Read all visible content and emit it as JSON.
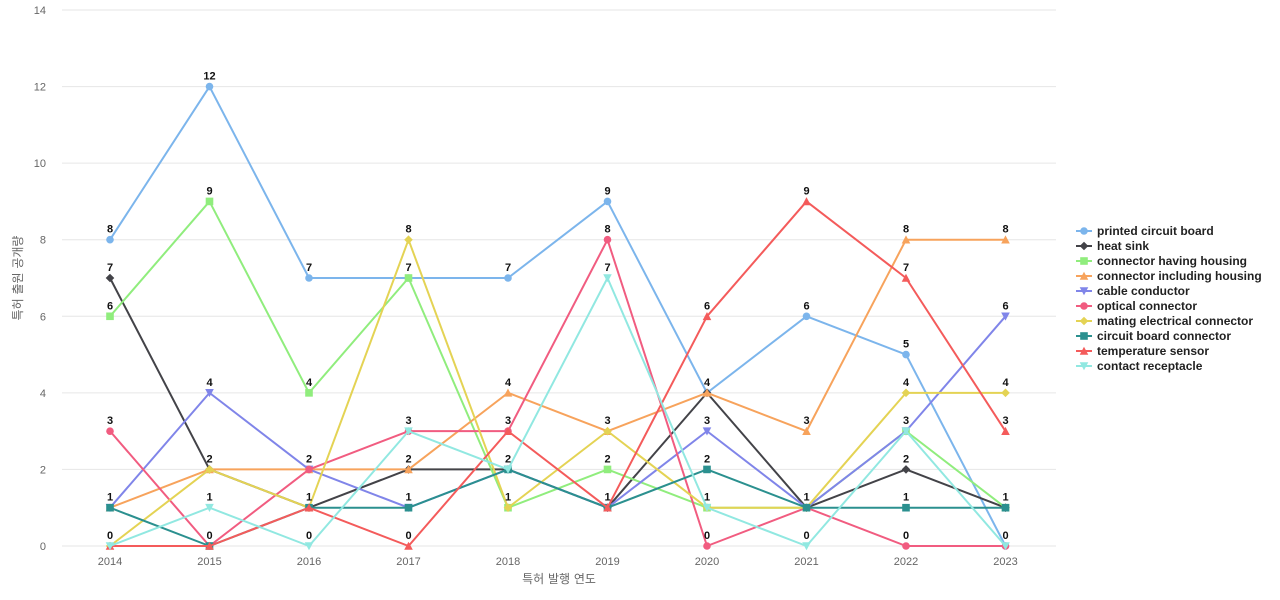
{
  "chart_data": {
    "type": "line",
    "xlabel": "특허 발행 연도",
    "ylabel": "특허 출원 공개량",
    "ylim": [
      0,
      14
    ],
    "yticks": [
      0,
      2,
      4,
      6,
      8,
      10,
      12,
      14
    ],
    "grid": true,
    "legend_position": "right",
    "categories": [
      "2014",
      "2015",
      "2016",
      "2017",
      "2018",
      "2019",
      "2020",
      "2021",
      "2022",
      "2023"
    ],
    "series": [
      {
        "name": "printed circuit board",
        "color": "#7cb5ec",
        "marker": "circle",
        "values": [
          8,
          12,
          7,
          7,
          7,
          9,
          4,
          6,
          5,
          0
        ]
      },
      {
        "name": "heat sink",
        "color": "#434348",
        "marker": "diamond",
        "values": [
          7,
          2,
          1,
          2,
          2,
          1,
          4,
          1,
          2,
          1
        ]
      },
      {
        "name": "connector having housing",
        "color": "#90ed7d",
        "marker": "square",
        "values": [
          6,
          9,
          4,
          7,
          1,
          2,
          1,
          1,
          3,
          1
        ]
      },
      {
        "name": "connector including housing",
        "color": "#f7a35c",
        "marker": "triangle",
        "values": [
          1,
          2,
          2,
          2,
          4,
          3,
          4,
          3,
          8,
          8
        ]
      },
      {
        "name": "cable conductor",
        "color": "#8085e9",
        "marker": "triangle-down",
        "values": [
          1,
          4,
          2,
          1,
          2,
          1,
          3,
          1,
          3,
          6
        ]
      },
      {
        "name": "optical connector",
        "color": "#f15c80",
        "marker": "circle",
        "values": [
          3,
          0,
          2,
          3,
          3,
          8,
          0,
          1,
          0,
          0
        ]
      },
      {
        "name": "mating electrical connector",
        "color": "#e4d354",
        "marker": "diamond",
        "values": [
          0,
          2,
          1,
          8,
          1,
          3,
          1,
          1,
          4,
          4
        ]
      },
      {
        "name": "circuit board connector",
        "color": "#2b908f",
        "marker": "square",
        "values": [
          1,
          0,
          1,
          1,
          2,
          1,
          2,
          1,
          1,
          1
        ]
      },
      {
        "name": "temperature sensor",
        "color": "#f45b5b",
        "marker": "triangle",
        "values": [
          0,
          0,
          1,
          0,
          3,
          1,
          6,
          9,
          7,
          3
        ]
      },
      {
        "name": "contact receptacle",
        "color": "#91e8e1",
        "marker": "triangle-down",
        "values": [
          0,
          1,
          0,
          3,
          2,
          7,
          1,
          0,
          3,
          0
        ]
      }
    ],
    "data_labels": [
      {
        "category": "2014",
        "series": "printed circuit board",
        "text": "8"
      },
      {
        "category": "2014",
        "series": "heat sink",
        "text": "7"
      },
      {
        "category": "2014",
        "series": "connector having housing",
        "text": "6"
      },
      {
        "category": "2014",
        "series": "optical connector",
        "text": "3"
      },
      {
        "category": "2014",
        "series": "connector including housing",
        "text": "1"
      },
      {
        "category": "2014",
        "series": "mating electrical connector",
        "text": "0"
      },
      {
        "category": "2015",
        "series": "printed circuit board",
        "text": "12"
      },
      {
        "category": "2015",
        "series": "connector having housing",
        "text": "9"
      },
      {
        "category": "2015",
        "series": "cable conductor",
        "text": "4"
      },
      {
        "category": "2015",
        "series": "connector including housing",
        "text": "2"
      },
      {
        "category": "2015",
        "series": "contact receptacle",
        "text": "1"
      },
      {
        "category": "2015",
        "series": "optical connector",
        "text": "0"
      },
      {
        "category": "2016",
        "series": "printed circuit board",
        "text": "7"
      },
      {
        "category": "2016",
        "series": "connector having housing",
        "text": "4"
      },
      {
        "category": "2016",
        "series": "optical connector",
        "text": "2"
      },
      {
        "category": "2016",
        "series": "heat sink",
        "text": "1"
      },
      {
        "category": "2016",
        "series": "contact receptacle",
        "text": "0"
      },
      {
        "category": "2017",
        "series": "mating electrical connector",
        "text": "8"
      },
      {
        "category": "2017",
        "series": "connector having housing",
        "text": "7"
      },
      {
        "category": "2017",
        "series": "contact receptacle",
        "text": "3"
      },
      {
        "category": "2017",
        "series": "connector including housing",
        "text": "2"
      },
      {
        "category": "2017",
        "series": "circuit board connector",
        "text": "1"
      },
      {
        "category": "2017",
        "series": "temperature sensor",
        "text": "0"
      },
      {
        "category": "2018",
        "series": "printed circuit board",
        "text": "7"
      },
      {
        "category": "2018",
        "series": "connector including housing",
        "text": "4"
      },
      {
        "category": "2018",
        "series": "optical connector",
        "text": "3"
      },
      {
        "category": "2018",
        "series": "circuit board connector",
        "text": "2"
      },
      {
        "category": "2018",
        "series": "connector having housing",
        "text": "1"
      },
      {
        "category": "2019",
        "series": "printed circuit board",
        "text": "9"
      },
      {
        "category": "2019",
        "series": "optical connector",
        "text": "8"
      },
      {
        "category": "2019",
        "series": "contact receptacle",
        "text": "7"
      },
      {
        "category": "2019",
        "series": "connector including housing",
        "text": "3"
      },
      {
        "category": "2019",
        "series": "connector having housing",
        "text": "2"
      },
      {
        "category": "2019",
        "series": "heat sink",
        "text": "1"
      },
      {
        "category": "2020",
        "series": "temperature sensor",
        "text": "6"
      },
      {
        "category": "2020",
        "series": "heat sink",
        "text": "4"
      },
      {
        "category": "2020",
        "series": "cable conductor",
        "text": "3"
      },
      {
        "category": "2020",
        "series": "circuit board connector",
        "text": "2"
      },
      {
        "category": "2020",
        "series": "connector having housing",
        "text": "1"
      },
      {
        "category": "2020",
        "series": "optical connector",
        "text": "0"
      },
      {
        "category": "2021",
        "series": "temperature sensor",
        "text": "9"
      },
      {
        "category": "2021",
        "series": "printed circuit board",
        "text": "6"
      },
      {
        "category": "2021",
        "series": "connector including housing",
        "text": "3"
      },
      {
        "category": "2021",
        "series": "heat sink",
        "text": "1"
      },
      {
        "category": "2021",
        "series": "contact receptacle",
        "text": "0"
      },
      {
        "category": "2022",
        "series": "connector including housing",
        "text": "8"
      },
      {
        "category": "2022",
        "series": "temperature sensor",
        "text": "7"
      },
      {
        "category": "2022",
        "series": "printed circuit board",
        "text": "5"
      },
      {
        "category": "2022",
        "series": "mating electrical connector",
        "text": "4"
      },
      {
        "category": "2022",
        "series": "connector having housing",
        "text": "3"
      },
      {
        "category": "2022",
        "series": "heat sink",
        "text": "2"
      },
      {
        "category": "2022",
        "series": "circuit board connector",
        "text": "1"
      },
      {
        "category": "2022",
        "series": "optical connector",
        "text": "0"
      },
      {
        "category": "2023",
        "series": "connector including housing",
        "text": "8"
      },
      {
        "category": "2023",
        "series": "cable conductor",
        "text": "6"
      },
      {
        "category": "2023",
        "series": "mating electrical connector",
        "text": "4"
      },
      {
        "category": "2023",
        "series": "temperature sensor",
        "text": "3"
      },
      {
        "category": "2023",
        "series": "heat sink",
        "text": "1"
      },
      {
        "category": "2023",
        "series": "printed circuit board",
        "text": "0"
      }
    ]
  }
}
